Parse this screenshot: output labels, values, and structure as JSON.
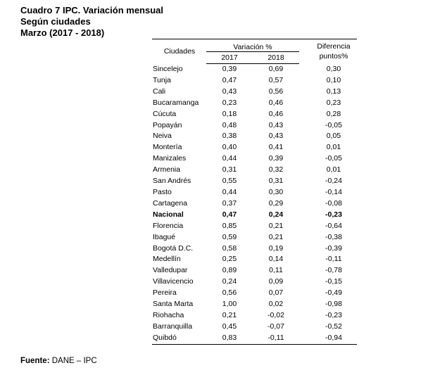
{
  "title": {
    "line1": "Cuadro 7 IPC. Variación mensual",
    "line2": "Según ciudades",
    "line3": "Marzo (2017 - 2018)"
  },
  "table": {
    "header_city": "Ciudades",
    "header_variation": "Variación %",
    "header_year1": "2017",
    "header_year2": "2018",
    "header_diff_line1": "Diferencia",
    "header_diff_line2": "puntos%",
    "rows": [
      {
        "city": "Sincelejo",
        "v2017": "0,39",
        "v2018": "0,69",
        "diff": "0,30"
      },
      {
        "city": "Tunja",
        "v2017": "0,47",
        "v2018": "0,57",
        "diff": "0,10"
      },
      {
        "city": "Cali",
        "v2017": "0,43",
        "v2018": "0,56",
        "diff": "0,13"
      },
      {
        "city": "Bucaramanga",
        "v2017": "0,23",
        "v2018": "0,46",
        "diff": "0,23"
      },
      {
        "city": "Cúcuta",
        "v2017": "0,18",
        "v2018": "0,46",
        "diff": "0,28"
      },
      {
        "city": "Popayán",
        "v2017": "0,48",
        "v2018": "0,43",
        "diff": "-0,05"
      },
      {
        "city": "Neiva",
        "v2017": "0,38",
        "v2018": "0,43",
        "diff": "0,05"
      },
      {
        "city": "Montería",
        "v2017": "0,40",
        "v2018": "0,41",
        "diff": "0,01"
      },
      {
        "city": "Manizales",
        "v2017": "0,44",
        "v2018": "0,39",
        "diff": "-0,05"
      },
      {
        "city": "Armenia",
        "v2017": "0,31",
        "v2018": "0,32",
        "diff": "0,01"
      },
      {
        "city": "San Andrés",
        "v2017": "0,55",
        "v2018": "0,31",
        "diff": "-0,24"
      },
      {
        "city": "Pasto",
        "v2017": "0,44",
        "v2018": "0,30",
        "diff": "-0,14"
      },
      {
        "city": "Cartagena",
        "v2017": "0,37",
        "v2018": "0,29",
        "diff": "-0,08"
      },
      {
        "city": "Nacional",
        "v2017": "0,47",
        "v2018": "0,24",
        "diff": "-0,23",
        "bold": true
      },
      {
        "city": "Florencia",
        "v2017": "0,85",
        "v2018": "0,21",
        "diff": "-0,64"
      },
      {
        "city": "Ibagué",
        "v2017": "0,59",
        "v2018": "0,21",
        "diff": "-0,38"
      },
      {
        "city": "Bogotá D.C.",
        "v2017": "0,58",
        "v2018": "0,19",
        "diff": "-0,39"
      },
      {
        "city": "Medellín",
        "v2017": "0,25",
        "v2018": "0,14",
        "diff": "-0,11"
      },
      {
        "city": "Valledupar",
        "v2017": "0,89",
        "v2018": "0,11",
        "diff": "-0,78"
      },
      {
        "city": "Villavicencio",
        "v2017": "0,24",
        "v2018": "0,09",
        "diff": "-0,15"
      },
      {
        "city": "Pereira",
        "v2017": "0,56",
        "v2018": "0,07",
        "diff": "-0,49"
      },
      {
        "city": "Santa Marta",
        "v2017": "1,00",
        "v2018": "0,02",
        "diff": "-0,98"
      },
      {
        "city": "Riohacha",
        "v2017": "0,21",
        "v2018": "-0,02",
        "diff": "-0,23"
      },
      {
        "city": "Barranquilla",
        "v2017": "0,45",
        "v2018": "-0,07",
        "diff": "-0,52"
      },
      {
        "city": "Quibdó",
        "v2017": "0,83",
        "v2018": "-0,11",
        "diff": "-0,94"
      }
    ]
  },
  "footer": {
    "label": "Fuente:",
    "source": "DANE – IPC"
  }
}
